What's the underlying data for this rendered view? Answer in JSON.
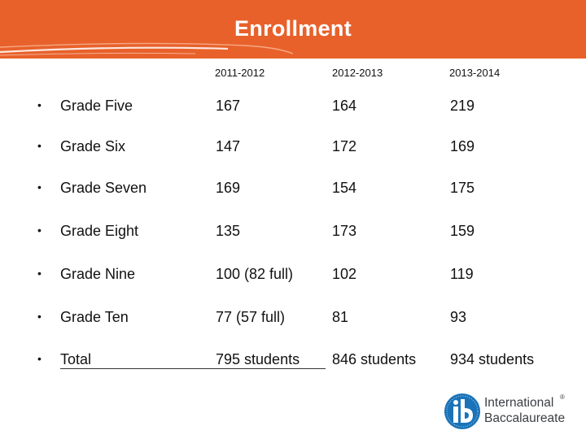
{
  "slide": {
    "title": "Enrollment"
  },
  "table": {
    "columns": [
      "2011-2012",
      "2012-2013",
      "2013-2014"
    ],
    "rows": [
      {
        "label": "Grade Five",
        "values": [
          "167",
          "164",
          "219"
        ]
      },
      {
        "label": "Grade Six",
        "values": [
          "147",
          "172",
          "169"
        ]
      },
      {
        "label": "Grade Seven",
        "values": [
          "169",
          "154",
          "175"
        ]
      },
      {
        "label": "Grade Eight",
        "values": [
          "135",
          "173",
          "159"
        ]
      },
      {
        "label": "Grade Nine",
        "values": [
          "100 (82 full)",
          "102",
          "119"
        ]
      },
      {
        "label": "Grade Ten",
        "values": [
          "77 (57 full)",
          "81",
          "93"
        ]
      },
      {
        "label": "Total",
        "values": [
          "795 students",
          "846 students",
          "934 students"
        ]
      }
    ],
    "bullet": "•"
  },
  "logo": {
    "icon": "ib-logo-icon",
    "line1": "International",
    "line2": "Baccalaureate",
    "mark": "®"
  },
  "colors": {
    "header": "#e8612b",
    "logo_blue": "#1a73b8"
  }
}
